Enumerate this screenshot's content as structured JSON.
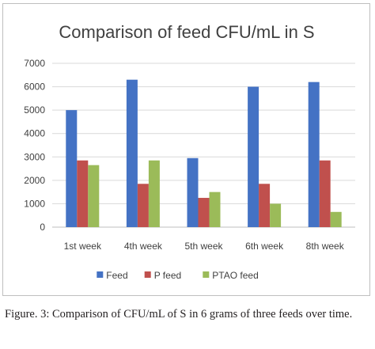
{
  "caption": "Figure. 3: Comparison of CFU/mL of S in 6 grams of three feeds over time.",
  "chart_data": {
    "type": "bar",
    "title": "Comparison of feed CFU/mL in S",
    "categories": [
      "1st week",
      "4th week",
      "5th week",
      "6th week",
      "8th week"
    ],
    "series": [
      {
        "name": "Feed",
        "color": "#4472c4",
        "values": [
          5000,
          6300,
          2950,
          6000,
          6200
        ]
      },
      {
        "name": "P feed",
        "color": "#c0504d",
        "values": [
          2850,
          1850,
          1250,
          1850,
          2850
        ]
      },
      {
        "name": "PTAO feed",
        "color": "#9bbb59",
        "values": [
          2650,
          2850,
          1500,
          1000,
          650
        ]
      }
    ],
    "ylim": [
      0,
      7000
    ],
    "yticks": [
      "0",
      "1000",
      "2000",
      "3000",
      "4000",
      "5000",
      "6000",
      "7000"
    ],
    "grid": true,
    "legend_position": "bottom"
  }
}
